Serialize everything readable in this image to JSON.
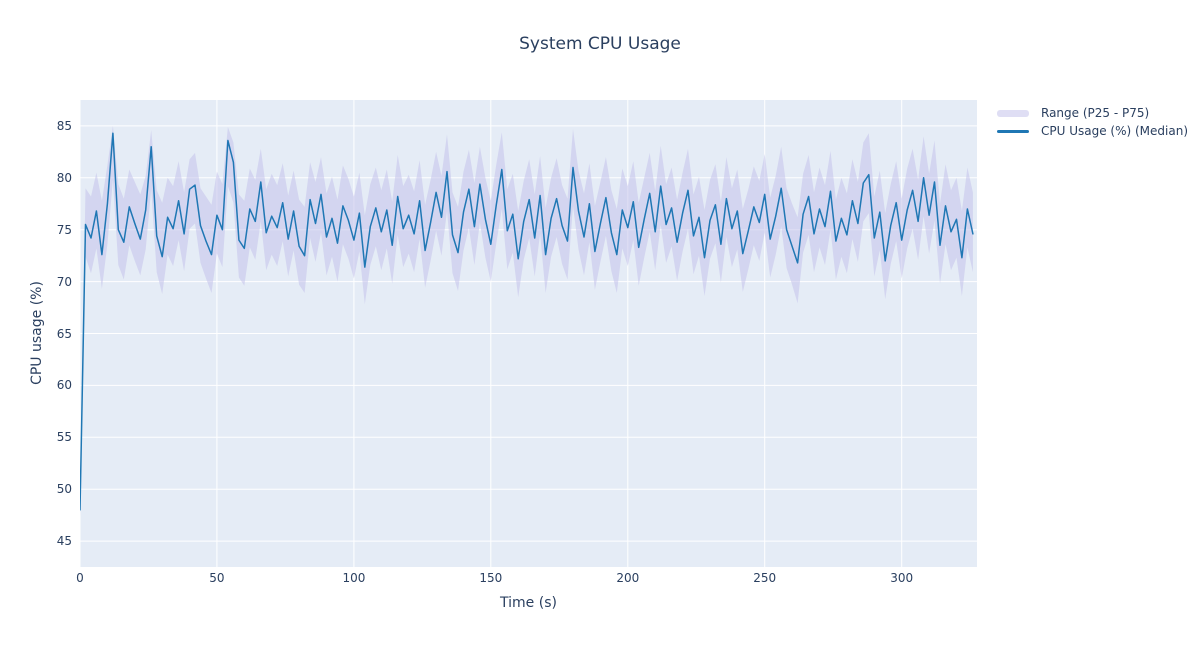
{
  "page": {
    "background": "#ffffff",
    "font_color": "#2a3f5f"
  },
  "chart_data": {
    "type": "line",
    "title": "System CPU Usage",
    "xlabel": "Time (s)",
    "ylabel": "CPU usage (%)",
    "xlim": [
      0,
      327.5
    ],
    "ylim": [
      42.5,
      87.5
    ],
    "xticks": [
      0,
      50,
      100,
      150,
      200,
      250,
      300
    ],
    "yticks": [
      45,
      50,
      55,
      60,
      65,
      70,
      75,
      80,
      85
    ],
    "grid": true,
    "plot_bg_color": "#e5ecf6",
    "grid_color": "#ffffff",
    "legend_position": "outside-right-top",
    "x_start": 0,
    "x_step": 2,
    "series": [
      {
        "name": "Range (P25 - P75)",
        "type": "band",
        "fill_color": "rgba(197,195,235,0.55)",
        "p75": [
          48.6,
          79.0,
          78.2,
          80.5,
          77.8,
          81.2,
          85.0,
          79.4,
          78.0,
          80.8,
          79.6,
          78.4,
          80.2,
          84.6,
          78.8,
          77.6,
          80.0,
          79.2,
          81.6,
          78.6,
          81.8,
          82.4,
          79.0,
          78.2,
          77.4,
          80.6,
          79.4,
          84.9,
          83.4,
          78.4,
          77.8,
          80.9,
          79.8,
          82.8,
          78.9,
          80.4,
          79.3,
          81.4,
          78.3,
          80.7,
          77.9,
          77.2,
          81.5,
          79.6,
          82.0,
          78.5,
          80.1,
          77.9,
          81.2,
          79.9,
          78.2,
          80.5,
          76.4,
          79.4,
          81.0,
          78.8,
          80.8,
          77.7,
          82.2,
          79.2,
          80.3,
          78.7,
          81.7,
          77.4,
          79.8,
          82.5,
          80.2,
          84.2,
          78.6,
          77.2,
          80.6,
          82.7,
          79.5,
          83.0,
          80.0,
          77.8,
          81.3,
          84.4,
          78.9,
          80.4,
          76.8,
          79.7,
          81.8,
          78.4,
          82.1,
          77.1,
          80.0,
          81.9,
          79.3,
          78.0,
          84.7,
          80.7,
          78.5,
          81.4,
          77.3,
          79.6,
          82.0,
          78.8,
          77.0,
          80.9,
          79.2,
          81.6,
          77.6,
          80.0,
          82.4,
          78.7,
          83.1,
          79.4,
          81.0,
          77.9,
          80.5,
          82.8,
          78.4,
          80.1,
          76.9,
          79.8,
          81.3,
          77.7,
          82.0,
          79.0,
          80.8,
          77.0,
          78.9,
          81.1,
          79.7,
          82.3,
          78.1,
          80.2,
          83.0,
          79.0,
          77.5,
          76.2,
          80.4,
          82.2,
          78.6,
          81.0,
          79.3,
          82.6,
          77.9,
          80.0,
          78.5,
          81.8,
          79.6,
          83.4,
          84.3,
          78.2,
          80.7,
          76.6,
          79.4,
          81.6,
          78.0,
          80.9,
          82.8,
          79.8,
          84.0,
          80.4,
          83.6,
          77.5,
          81.3,
          78.8,
          80.0,
          76.8,
          81.0,
          78.6
        ],
        "p25": [
          47.4,
          72.4,
          70.8,
          73.2,
          69.3,
          73.6,
          79.8,
          71.6,
          70.2,
          73.5,
          72.0,
          70.6,
          73.1,
          78.9,
          70.9,
          68.8,
          72.6,
          71.5,
          74.0,
          71.0,
          75.1,
          75.6,
          71.8,
          70.3,
          68.9,
          72.7,
          71.4,
          79.2,
          77.6,
          70.4,
          69.6,
          73.3,
          72.1,
          75.8,
          71.1,
          72.6,
          71.5,
          73.9,
          70.5,
          73.0,
          69.7,
          68.9,
          74.2,
          71.9,
          74.7,
          70.6,
          72.4,
          70.0,
          73.6,
          72.2,
          70.3,
          72.9,
          67.8,
          71.6,
          73.4,
          71.1,
          73.2,
          69.8,
          74.5,
          71.4,
          72.7,
          70.9,
          74.1,
          69.4,
          72.0,
          74.9,
          72.5,
          76.8,
          70.8,
          69.1,
          73.0,
          75.2,
          71.6,
          75.7,
          72.3,
          70.0,
          73.7,
          77.0,
          71.2,
          72.8,
          68.5,
          72.1,
          74.2,
          70.5,
          74.6,
          68.9,
          72.4,
          74.3,
          71.7,
          70.2,
          77.3,
          73.1,
          70.6,
          73.8,
          69.2,
          71.9,
          74.4,
          71.0,
          68.9,
          73.2,
          71.5,
          74.0,
          69.6,
          72.3,
          74.8,
          71.1,
          75.5,
          71.8,
          73.4,
          70.1,
          72.9,
          75.1,
          70.7,
          72.5,
          68.6,
          72.2,
          73.7,
          69.9,
          74.3,
          71.4,
          73.1,
          69.0,
          71.2,
          73.5,
          72.0,
          74.7,
          70.4,
          72.6,
          75.3,
          71.3,
          69.7,
          67.9,
          72.8,
          74.5,
          70.9,
          73.3,
          71.6,
          75.0,
          70.2,
          72.4,
          70.8,
          74.1,
          71.9,
          75.8,
          76.6,
          70.5,
          73.0,
          68.3,
          71.7,
          73.9,
          70.3,
          73.2,
          75.1,
          72.1,
          76.3,
          72.7,
          75.9,
          69.8,
          73.6,
          71.1,
          72.3,
          68.6,
          73.3,
          70.9
        ]
      },
      {
        "name": "CPU Usage (%) (Median)",
        "type": "line",
        "color": "#1f77b4",
        "line_width": 1.5,
        "values": [
          48.0,
          75.5,
          74.2,
          76.8,
          72.6,
          77.5,
          84.3,
          75.0,
          73.8,
          77.2,
          75.6,
          74.1,
          76.9,
          83.0,
          74.4,
          72.4,
          76.2,
          75.1,
          77.8,
          74.6,
          78.9,
          79.3,
          75.4,
          73.9,
          72.6,
          76.4,
          75.0,
          83.6,
          81.5,
          74.0,
          73.2,
          77.0,
          75.8,
          79.6,
          74.7,
          76.3,
          75.2,
          77.6,
          74.1,
          76.8,
          73.4,
          72.5,
          77.9,
          75.6,
          78.4,
          74.3,
          76.1,
          73.7,
          77.3,
          75.9,
          74.0,
          76.6,
          71.4,
          75.3,
          77.1,
          74.8,
          76.9,
          73.5,
          78.2,
          75.1,
          76.4,
          74.6,
          77.8,
          73.0,
          75.7,
          78.6,
          76.2,
          80.6,
          74.5,
          72.8,
          76.7,
          78.9,
          75.3,
          79.4,
          76.0,
          73.6,
          77.4,
          80.8,
          74.9,
          76.5,
          72.2,
          75.8,
          77.9,
          74.2,
          78.3,
          72.6,
          76.1,
          78.0,
          75.4,
          73.9,
          81.0,
          76.8,
          74.3,
          77.5,
          72.9,
          75.6,
          78.1,
          74.7,
          72.6,
          76.9,
          75.2,
          77.7,
          73.3,
          76.0,
          78.5,
          74.8,
          79.2,
          75.5,
          77.1,
          73.8,
          76.6,
          78.8,
          74.4,
          76.2,
          72.3,
          75.9,
          77.4,
          73.6,
          78.0,
          75.1,
          76.8,
          72.7,
          74.9,
          77.2,
          75.7,
          78.4,
          74.1,
          76.3,
          79.0,
          75.0,
          73.4,
          71.8,
          76.5,
          78.2,
          74.6,
          77.0,
          75.3,
          78.7,
          73.9,
          76.1,
          74.5,
          77.8,
          75.6,
          79.5,
          80.3,
          74.2,
          76.7,
          72.0,
          75.4,
          77.6,
          74.0,
          76.9,
          78.8,
          75.8,
          80.0,
          76.4,
          79.6,
          73.5,
          77.3,
          74.8,
          76.0,
          72.3,
          77.0,
          74.6
        ]
      }
    ]
  }
}
